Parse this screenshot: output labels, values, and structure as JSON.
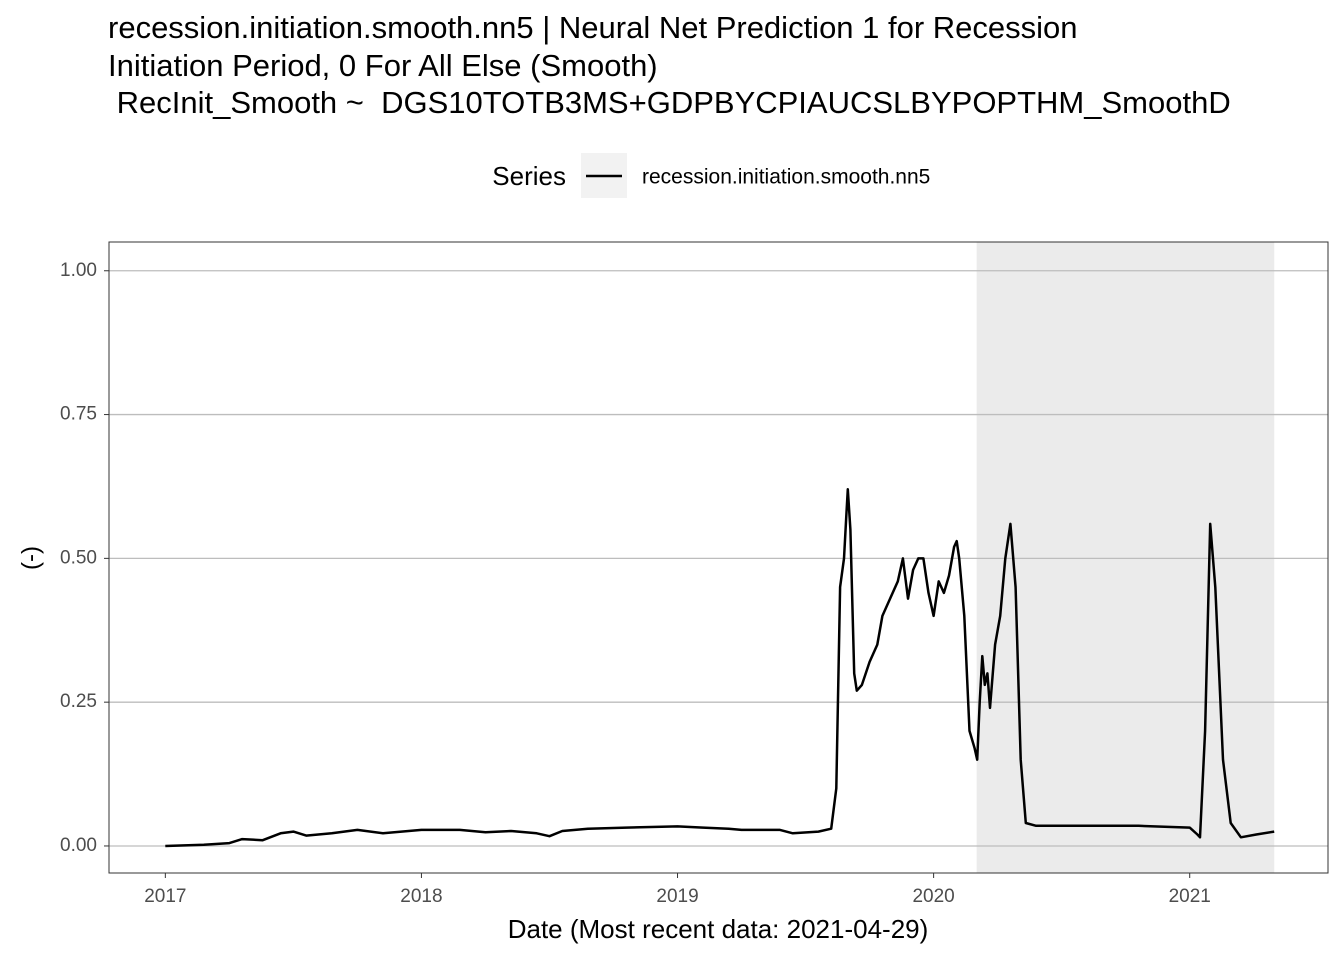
{
  "chart_data": {
    "type": "line",
    "title": [
      "recession.initiation.smooth.nn5 | Neural Net Prediction 1 for Recession",
      "Initiation Period, 0 For All Else (Smooth)",
      " RecInit_Smooth ~  DGS10TOTB3MS+GDPBYCPIAUCSLBYPOPTHM_SmoothD"
    ],
    "xlabel": "Date (Most recent data: 2021-04-29)",
    "ylabel": "(-)",
    "legend_title": "Series",
    "grid": true,
    "shade": [
      2020.168,
      2021.33
    ],
    "xlim": [
      2016.78,
      2021.54
    ],
    "ylim": [
      -0.047,
      1.05
    ],
    "xticks": [
      2017,
      2018,
      2019,
      2020,
      2021
    ],
    "yticks": [
      {
        "value": 0,
        "label": "0.00"
      },
      {
        "value": 0.25,
        "label": "0.25"
      },
      {
        "value": 0.5,
        "label": "0.50"
      },
      {
        "value": 0.75,
        "label": "0.75"
      },
      {
        "value": 1,
        "label": "1.00"
      }
    ],
    "series": [
      {
        "name": "recession.initiation.smooth.nn5",
        "color": "#000000",
        "x": [
          2017.0,
          2017.15,
          2017.25,
          2017.3,
          2017.38,
          2017.45,
          2017.5,
          2017.55,
          2017.65,
          2017.75,
          2017.85,
          2018.0,
          2018.15,
          2018.25,
          2018.35,
          2018.45,
          2018.5,
          2018.55,
          2018.65,
          2018.8,
          2019.0,
          2019.1,
          2019.2,
          2019.25,
          2019.4,
          2019.45,
          2019.55,
          2019.6,
          2019.62,
          2019.635,
          2019.65,
          2019.66,
          2019.665,
          2019.675,
          2019.69,
          2019.7,
          2019.72,
          2019.75,
          2019.78,
          2019.8,
          2019.83,
          2019.86,
          2019.88,
          2019.9,
          2019.92,
          2019.94,
          2019.96,
          2019.98,
          2020.0,
          2020.02,
          2020.04,
          2020.06,
          2020.08,
          2020.09,
          2020.1,
          2020.12,
          2020.14,
          2020.16,
          2020.17,
          2020.18,
          2020.19,
          2020.2,
          2020.21,
          2020.22,
          2020.24,
          2020.26,
          2020.28,
          2020.3,
          2020.32,
          2020.34,
          2020.36,
          2020.4,
          2020.6,
          2020.8,
          2021.0,
          2021.03,
          2021.04,
          2021.06,
          2021.08,
          2021.1,
          2021.13,
          2021.16,
          2021.2,
          2021.26,
          2021.33
        ],
        "values": [
          0.0,
          0.002,
          0.005,
          0.012,
          0.01,
          0.022,
          0.025,
          0.018,
          0.022,
          0.028,
          0.022,
          0.028,
          0.028,
          0.024,
          0.026,
          0.022,
          0.017,
          0.026,
          0.03,
          0.032,
          0.034,
          0.032,
          0.03,
          0.028,
          0.028,
          0.022,
          0.025,
          0.03,
          0.1,
          0.45,
          0.5,
          0.58,
          0.62,
          0.55,
          0.3,
          0.27,
          0.28,
          0.32,
          0.35,
          0.4,
          0.43,
          0.46,
          0.5,
          0.43,
          0.48,
          0.5,
          0.5,
          0.44,
          0.4,
          0.46,
          0.44,
          0.47,
          0.52,
          0.53,
          0.5,
          0.4,
          0.2,
          0.17,
          0.15,
          0.25,
          0.33,
          0.28,
          0.3,
          0.24,
          0.35,
          0.4,
          0.5,
          0.56,
          0.45,
          0.15,
          0.04,
          0.035,
          0.035,
          0.035,
          0.032,
          0.02,
          0.015,
          0.2,
          0.56,
          0.45,
          0.15,
          0.04,
          0.015,
          0.02,
          0.025
        ]
      }
    ]
  }
}
